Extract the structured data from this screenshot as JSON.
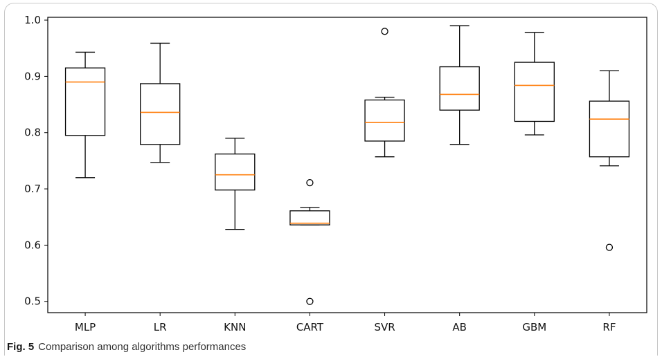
{
  "caption": {
    "label": "Fig. 5",
    "text": "Comparison among algorithms performances"
  },
  "chart_data": {
    "type": "box",
    "title": "",
    "xlabel": "",
    "ylabel": "",
    "ylim": [
      0.48,
      1.005
    ],
    "yticks": [
      0.5,
      0.6,
      0.7,
      0.8,
      0.9,
      1.0
    ],
    "grid": false,
    "colors": {
      "box": "#000000",
      "median": "#ff7f0e",
      "outlier": "#000000"
    },
    "categories": [
      "MLP",
      "LR",
      "KNN",
      "CART",
      "SVR",
      "AB",
      "GBM",
      "RF"
    ],
    "boxes": [
      {
        "label": "MLP",
        "whisker_low": 0.72,
        "q1": 0.795,
        "median": 0.89,
        "q3": 0.915,
        "whisker_high": 0.943,
        "outliers": []
      },
      {
        "label": "LR",
        "whisker_low": 0.747,
        "q1": 0.779,
        "median": 0.836,
        "q3": 0.887,
        "whisker_high": 0.959,
        "outliers": []
      },
      {
        "label": "KNN",
        "whisker_low": 0.628,
        "q1": 0.698,
        "median": 0.725,
        "q3": 0.762,
        "whisker_high": 0.79,
        "outliers": []
      },
      {
        "label": "CART",
        "whisker_low": 0.636,
        "q1": 0.636,
        "median": 0.639,
        "q3": 0.661,
        "whisker_high": 0.667,
        "outliers": [
          0.711,
          0.5
        ]
      },
      {
        "label": "SVR",
        "whisker_low": 0.757,
        "q1": 0.785,
        "median": 0.818,
        "q3": 0.858,
        "whisker_high": 0.863,
        "outliers": [
          0.98
        ]
      },
      {
        "label": "AB",
        "whisker_low": 0.779,
        "q1": 0.84,
        "median": 0.868,
        "q3": 0.917,
        "whisker_high": 0.99,
        "outliers": []
      },
      {
        "label": "GBM",
        "whisker_low": 0.796,
        "q1": 0.82,
        "median": 0.884,
        "q3": 0.925,
        "whisker_high": 0.978,
        "outliers": []
      },
      {
        "label": "RF",
        "whisker_low": 0.741,
        "q1": 0.757,
        "median": 0.824,
        "q3": 0.856,
        "whisker_high": 0.91,
        "outliers": [
          0.596
        ]
      }
    ]
  }
}
